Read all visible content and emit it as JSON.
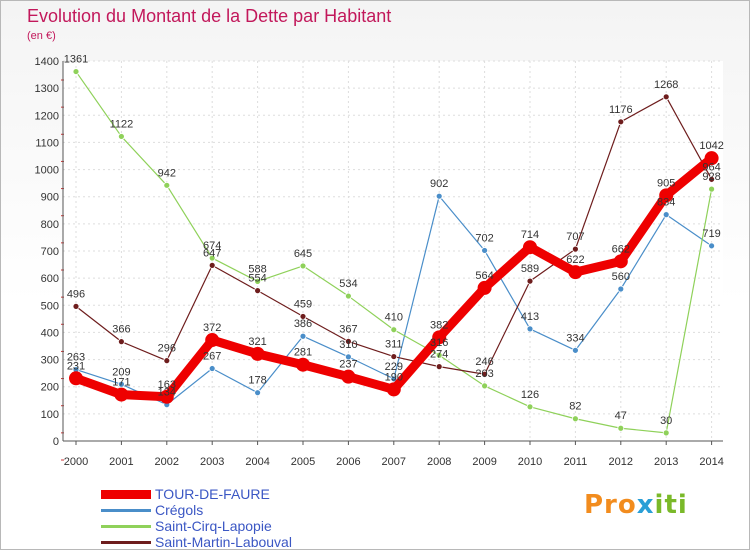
{
  "title": "Evolution du Montant de la Dette par Habitant",
  "subtitle": "(en €)",
  "logo": {
    "part1": "Pro",
    "part2": "x",
    "part3": "iti"
  },
  "chart_data": {
    "type": "line",
    "x": [
      "2000",
      "2001",
      "2002",
      "2003",
      "2004",
      "2005",
      "2006",
      "2007",
      "2008",
      "2009",
      "2010",
      "2011",
      "2012",
      "2013",
      "2014"
    ],
    "ylim": [
      0,
      1400
    ],
    "yticks": [
      0,
      100,
      200,
      300,
      400,
      500,
      600,
      700,
      800,
      900,
      1000,
      1100,
      1200,
      1300,
      1400
    ],
    "grid": true,
    "legend_position": "bottom-left",
    "series": [
      {
        "name": "TOUR-DE-FAURE",
        "color": "#ee0000",
        "emphasis": true,
        "values": [
          231,
          171,
          163,
          372,
          321,
          281,
          237,
          190,
          382,
          564,
          714,
          622,
          662,
          905,
          1042
        ],
        "labels": [
          "231",
          "171",
          "163",
          "372",
          "321",
          "281",
          "237",
          "190",
          "382",
          "564",
          "714",
          "622",
          "662",
          "905",
          "1042"
        ]
      },
      {
        "name": "Crégols",
        "color": "#4a8ec9",
        "values": [
          263,
          209,
          134,
          267,
          178,
          386,
          310,
          229,
          902,
          702,
          413,
          334,
          560,
          834,
          719
        ],
        "labels": [
          "263",
          "209",
          "134",
          "267",
          "178",
          "386",
          "310",
          "229",
          "902",
          "702",
          "413",
          "334",
          "560",
          "834",
          "719"
        ]
      },
      {
        "name": "Saint-Cirq-Lapopie",
        "color": "#8fd15a",
        "values": [
          1361,
          1122,
          942,
          674,
          588,
          645,
          534,
          410,
          316,
          203,
          126,
          82,
          47,
          30,
          928
        ],
        "labels": [
          "1361",
          "1122",
          "942",
          "674",
          "588",
          "645",
          "534",
          "410",
          "316",
          "203",
          "126",
          "82",
          "47",
          "30",
          "928"
        ]
      },
      {
        "name": "Saint-Martin-Labouval",
        "color": "#6e1d1d",
        "values": [
          496,
          366,
          296,
          647,
          554,
          459,
          367,
          311,
          274,
          246,
          589,
          707,
          1176,
          1268,
          964
        ],
        "labels": [
          "496",
          "366",
          "296",
          "647",
          "554",
          "459",
          "367",
          "311",
          "274",
          "246",
          "589",
          "707",
          "1176",
          "1268",
          "964"
        ]
      }
    ]
  }
}
